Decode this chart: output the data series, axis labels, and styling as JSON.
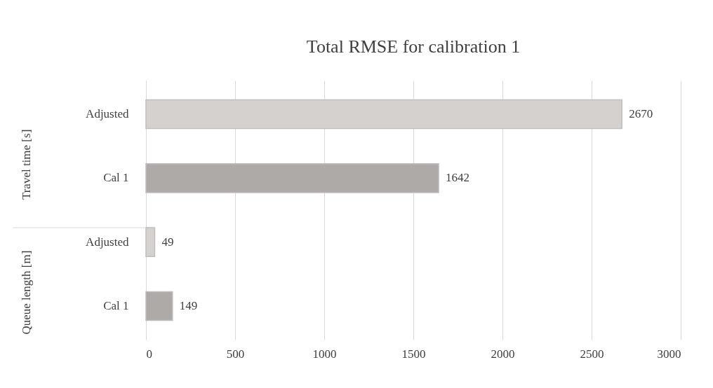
{
  "chart_data": {
    "type": "bar",
    "orientation": "horizontal",
    "title": "Total RMSE for calibration 1",
    "categories": [
      "Adjusted",
      "Cal 1",
      "Adjusted",
      "Cal 1"
    ],
    "values": [
      2670,
      1642,
      49,
      149
    ],
    "colors": [
      "#d4d1cf",
      "#aeaaa8",
      "#d4d1cf",
      "#aeaaa8"
    ],
    "annotations": [
      "Travel time [s]",
      "Queue length [m]"
    ],
    "xlim": [
      0,
      3000
    ],
    "xticks": [
      0,
      500,
      1000,
      1500,
      2000,
      2500,
      3000
    ],
    "grid": "x",
    "data_labels": true
  }
}
